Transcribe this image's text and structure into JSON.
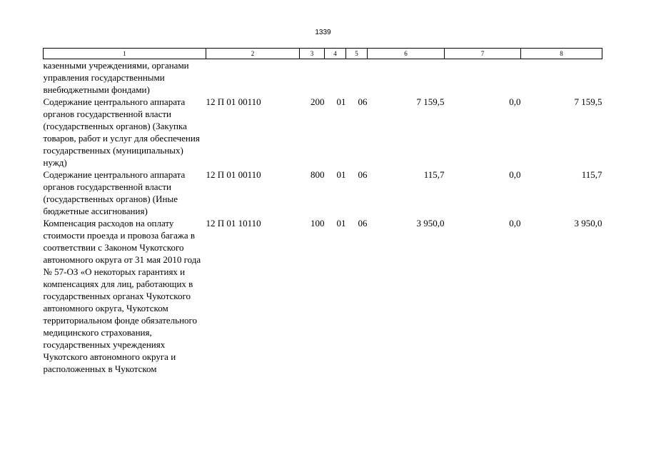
{
  "page_number": "1339",
  "table": {
    "headers": [
      "1",
      "2",
      "3",
      "4",
      "5",
      "6",
      "7",
      "8"
    ],
    "rows": [
      {
        "name": "казенными учреждениями, органами управления государственными внебюджетными фондами)",
        "csr": "",
        "vr": "",
        "rz": "",
        "pr": "",
        "sum1": "",
        "sum2": "",
        "sum3": ""
      },
      {
        "name": "Содержание центрального аппарата органов государственной власти (государственных органов) (Закупка товаров, работ и услуг для обеспечения государственных (муниципальных) нужд)",
        "csr": "12 П 01 00110",
        "vr": "200",
        "rz": "01",
        "pr": "06",
        "sum1": "7 159,5",
        "sum2": "0,0",
        "sum3": "7 159,5"
      },
      {
        "name": "Содержание центрального аппарата органов государственной власти (государственных органов) (Иные бюджетные ассигнования)",
        "csr": "12 П 01 00110",
        "vr": "800",
        "rz": "01",
        "pr": "06",
        "sum1": "115,7",
        "sum2": "0,0",
        "sum3": "115,7"
      },
      {
        "name": "Компенсация расходов на оплату стоимости проезда и провоза багажа в соответствии с Законом Чукотского автономного округа от 31 мая 2010 года № 57-ОЗ «О некоторых гарантиях и компенсациях для лиц, работающих в государственных органах Чукотского автономного округа, Чукотском территориальном фонде обязательного медицинского страхования, государственных учреждениях Чукотского автономного округа и расположенных в Чукотском",
        "csr": "12 П 01 10110",
        "vr": "100",
        "rz": "01",
        "pr": "06",
        "sum1": "3 950,0",
        "sum2": "0,0",
        "sum3": "3 950,0"
      }
    ]
  }
}
